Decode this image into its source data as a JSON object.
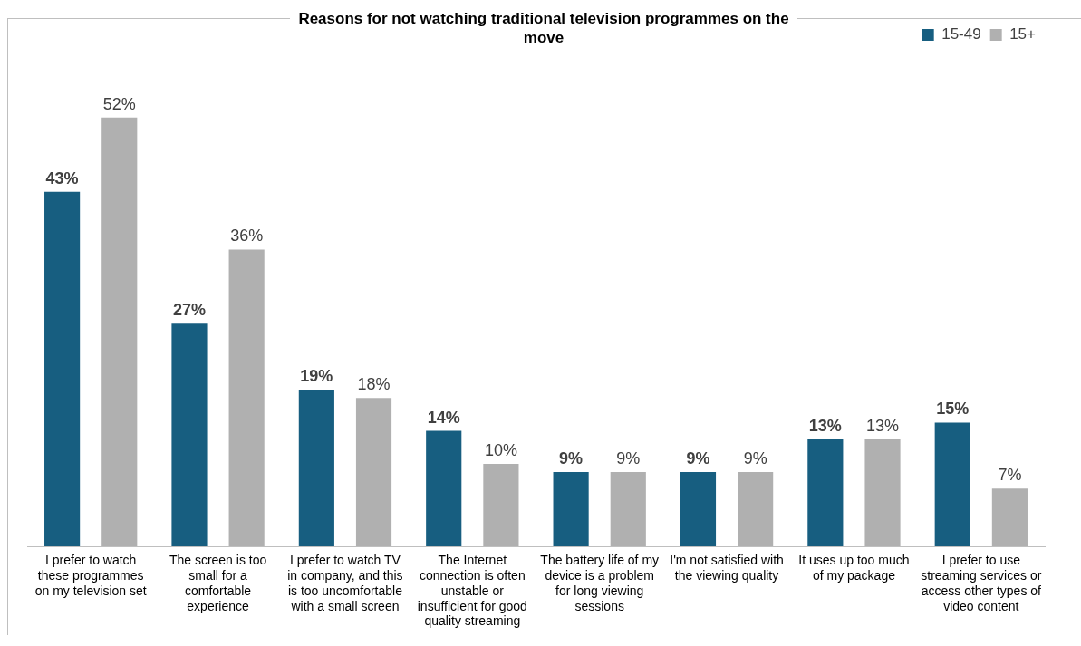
{
  "chart_data": {
    "type": "bar",
    "title": "Reasons for not watching traditional television programmes on the move",
    "categories": [
      "I prefer to watch these programmes on my television set",
      "The screen is too small for a comfortable experience",
      "I prefer to watch TV in company, and this is too uncomfortable with a small screen",
      "The Internet connection is often unstable or insufficient for good quality streaming",
      "The battery life of my device is a problem for long viewing sessions",
      "I'm not satisfied with the viewing quality",
      "It uses up too much of my package",
      "I prefer to use streaming services or access other types of video content"
    ],
    "series": [
      {
        "name": "15-49",
        "color": "#175e80",
        "values": [
          43,
          27,
          19,
          14,
          9,
          9,
          13,
          15
        ],
        "value_labels": [
          "43%",
          "27%",
          "19%",
          "14%",
          "9%",
          "9%",
          "13%",
          "15%"
        ]
      },
      {
        "name": "15+",
        "color": "#b0b0b0",
        "values": [
          52,
          36,
          18,
          10,
          9,
          9,
          13,
          7
        ],
        "value_labels": [
          "52%",
          "36%",
          "18%",
          "10%",
          "9%",
          "9%",
          "13%",
          "7%"
        ]
      }
    ],
    "legend": "top right",
    "grid": false,
    "tick_labels": "x"
  }
}
